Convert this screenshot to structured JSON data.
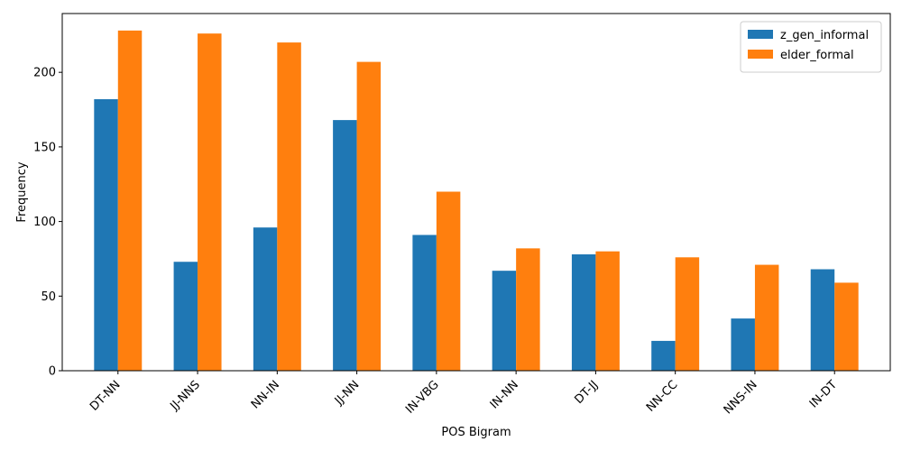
{
  "chart_data": {
    "type": "bar",
    "title": "",
    "xlabel": "POS Bigram",
    "ylabel": "Frequency",
    "categories": [
      "DT-NN",
      "JJ-NNS",
      "NN-IN",
      "JJ-NN",
      "IN-VBG",
      "IN-NN",
      "DT-JJ",
      "NN-CC",
      "NNS-IN",
      "IN-DT"
    ],
    "series": [
      {
        "name": "z_gen_informal",
        "color": "#1f77b4",
        "values": [
          182,
          73,
          96,
          168,
          91,
          67,
          78,
          20,
          35,
          68
        ]
      },
      {
        "name": "elder_formal",
        "color": "#ff7f0e",
        "values": [
          228,
          226,
          220,
          207,
          120,
          82,
          80,
          76,
          71,
          59
        ]
      }
    ],
    "ylim": [
      0,
      239.4
    ],
    "yticks": [
      0,
      50,
      100,
      150,
      200
    ],
    "grid": false,
    "legend_position": "top-right"
  }
}
